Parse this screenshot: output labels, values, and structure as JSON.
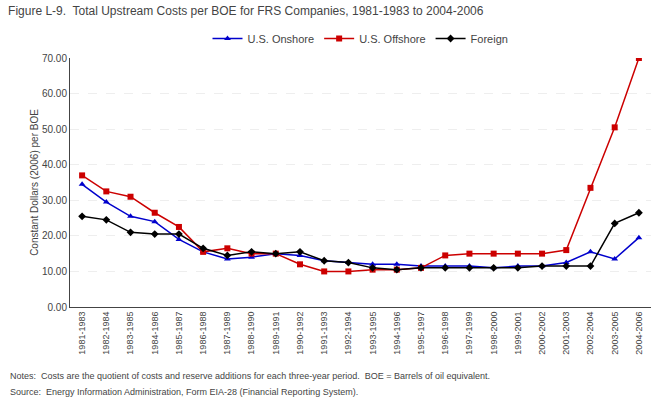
{
  "chart_data": {
    "type": "line",
    "title": "Figure L-9.  Total Upstream Costs per BOE for FRS Companies, 1981-1983 to 2004-2006",
    "ylabel": "Constant Dollars (2006) per BOE",
    "annotations": [
      "Notes:  Costs are the quotient of costs and reserve additions for each three-year period.  BOE = Barrels of oil equivalent.",
      "Source:  Energy Information Administration, Form EIA-28 (Financial Reporting System)."
    ],
    "categories": [
      "1981-1983",
      "1982-1984",
      "1983-1985",
      "1984-1986",
      "1985-1987",
      "1986-1988",
      "1987-1989",
      "1988-1990",
      "1989-1991",
      "1990-1992",
      "1991-1993",
      "1992-1994",
      "1993-1995",
      "1994-1996",
      "1995-1997",
      "1996-1998",
      "1997-1999",
      "1998-2000",
      "1999-2001",
      "2000-2002",
      "2001-2003",
      "2002-2004",
      "2003-2005",
      "2004-2006"
    ],
    "series": [
      {
        "name": "U.S. Onshore",
        "color": "#0000CC",
        "marker": "triangle",
        "values": [
          34.5,
          29.5,
          25.5,
          24.0,
          19.0,
          15.5,
          13.5,
          14.0,
          15.0,
          14.5,
          13.0,
          12.5,
          12.0,
          12.0,
          11.5,
          11.5,
          11.5,
          11.0,
          11.5,
          11.5,
          12.5,
          15.5,
          13.5,
          19.5
        ]
      },
      {
        "name": "U.S. Offshore",
        "color": "#CC0000",
        "marker": "square",
        "values": [
          37.0,
          32.5,
          31.0,
          26.5,
          22.5,
          15.5,
          16.5,
          15.0,
          15.0,
          12.0,
          10.0,
          10.0,
          10.5,
          10.5,
          11.0,
          14.5,
          15.0,
          15.0,
          15.0,
          15.0,
          16.0,
          33.5,
          50.5,
          70.0
        ]
      },
      {
        "name": "Foreign",
        "color": "#000000",
        "marker": "diamond",
        "values": [
          25.5,
          24.5,
          21.0,
          20.5,
          20.5,
          16.5,
          14.5,
          15.5,
          15.0,
          15.5,
          13.0,
          12.5,
          11.0,
          10.5,
          11.0,
          11.0,
          11.0,
          11.0,
          11.0,
          11.5,
          11.5,
          11.5,
          23.5,
          26.5
        ]
      }
    ],
    "ylim": [
      0.0,
      70.0
    ],
    "yticks": [
      {
        "value": 0.0,
        "label": "0.00"
      },
      {
        "value": 10.0,
        "label": "10.00"
      },
      {
        "value": 20.0,
        "label": "20.00"
      },
      {
        "value": 30.0,
        "label": "30.00"
      },
      {
        "value": 40.0,
        "label": "40.00"
      },
      {
        "value": 50.0,
        "label": "50.00"
      },
      {
        "value": 60.0,
        "label": "60.00"
      },
      {
        "value": 70.0,
        "label": "70.00"
      }
    ],
    "grid": true,
    "legend": "top"
  }
}
